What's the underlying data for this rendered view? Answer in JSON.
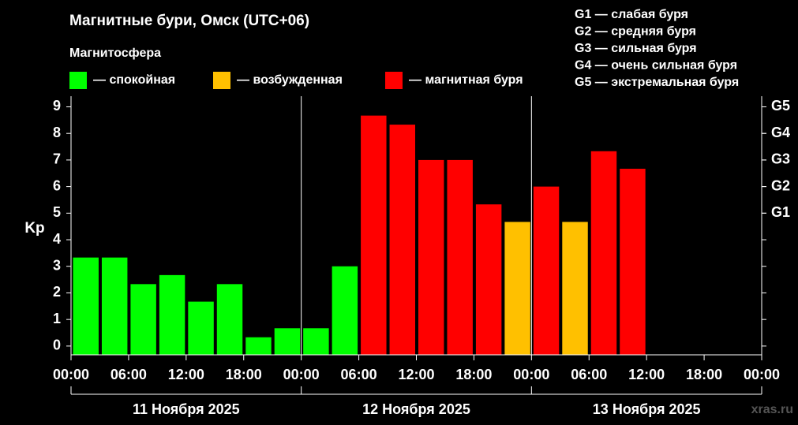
{
  "chart_data": {
    "type": "bar",
    "title": "Магнитные бури, Омск (UTC+06)",
    "y_label": "Kp",
    "legend_title": "Магнитосфера",
    "legend": [
      {
        "name": "— спокойная",
        "color": "#00ff00"
      },
      {
        "name": "— возбужденная",
        "color": "#ffc000"
      },
      {
        "name": "— магнитная буря",
        "color": "#ff0000"
      }
    ],
    "storm_legend": [
      "G1 — слабая буря",
      "G2 — средняя буря",
      "G3 — сильная буря",
      "G4 — очень сильная буря",
      "G5 — экстремальная буря"
    ],
    "x": [
      0,
      3,
      6,
      9,
      12,
      15,
      18,
      21,
      24,
      27,
      30,
      33,
      36,
      39,
      42,
      45,
      48,
      51,
      54,
      57,
      60,
      63,
      66,
      69
    ],
    "values": [
      3.33,
      3.33,
      2.33,
      2.67,
      1.67,
      2.33,
      0.33,
      0.67,
      0.67,
      3.0,
      8.67,
      8.33,
      7.0,
      7.0,
      5.33,
      4.67,
      6.0,
      4.67,
      7.33,
      6.67,
      null,
      null,
      null,
      null
    ],
    "colors": [
      "#00ff00",
      "#00ff00",
      "#00ff00",
      "#00ff00",
      "#00ff00",
      "#00ff00",
      "#00ff00",
      "#00ff00",
      "#00ff00",
      "#00ff00",
      "#ff0000",
      "#ff0000",
      "#ff0000",
      "#ff0000",
      "#ff0000",
      "#ffc000",
      "#ff0000",
      "#ffc000",
      "#ff0000",
      "#ff0000",
      null,
      null,
      null,
      null
    ],
    "xlim": [
      0,
      72
    ],
    "xticks": [
      {
        "value": 0,
        "label": "00:00"
      },
      {
        "value": 6,
        "label": "06:00"
      },
      {
        "value": 12,
        "label": "12:00"
      },
      {
        "value": 18,
        "label": "18:00"
      },
      {
        "value": 24,
        "label": "00:00"
      },
      {
        "value": 30,
        "label": "06:00"
      },
      {
        "value": 36,
        "label": "12:00"
      },
      {
        "value": 42,
        "label": "18:00"
      },
      {
        "value": 48,
        "label": "00:00"
      },
      {
        "value": 54,
        "label": "06:00"
      },
      {
        "value": 60,
        "label": "12:00"
      },
      {
        "value": 66,
        "label": "18:00"
      },
      {
        "value": 72,
        "label": "00:00"
      }
    ],
    "days": [
      "11 Ноября 2025",
      "12 Ноября 2025",
      "13 Ноября 2025"
    ],
    "ylim": [
      -0.33,
      9.4
    ],
    "yticks": [
      0,
      1,
      2,
      3,
      4,
      5,
      6,
      7,
      8,
      9
    ],
    "y2lim": [
      -0.33,
      9.4
    ],
    "y2ticks": [
      {
        "value": 5,
        "label": "G1"
      },
      {
        "value": 6,
        "label": "G2"
      },
      {
        "value": 7,
        "label": "G3"
      },
      {
        "value": 8,
        "label": "G4"
      },
      {
        "value": 9,
        "label": "G5"
      }
    ],
    "watermark": "xras.ru"
  }
}
